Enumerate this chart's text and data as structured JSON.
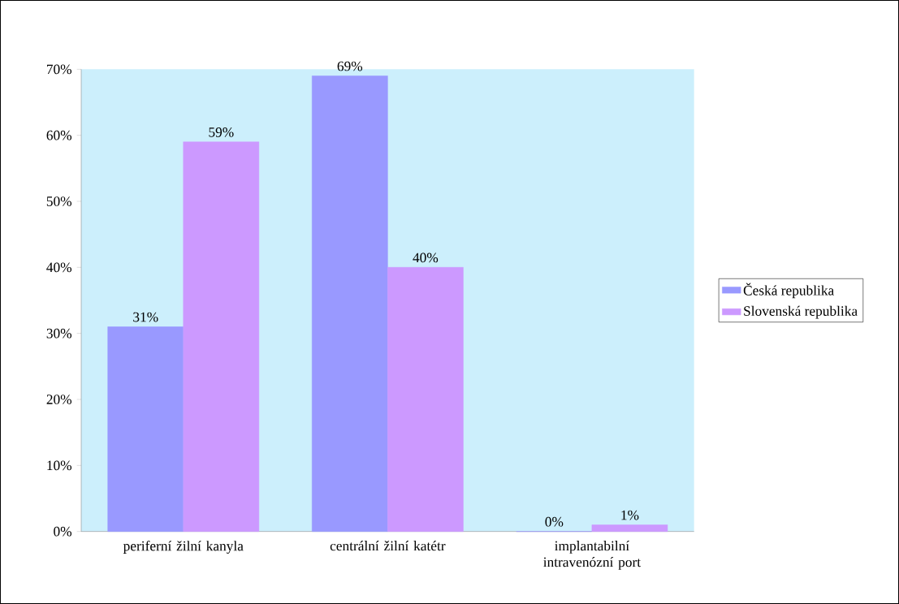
{
  "chart_data": {
    "type": "bar",
    "categories": [
      "periferní žilní kanyla",
      "centrální žilní katétr",
      "implantabilní intravenózní port"
    ],
    "series": [
      {
        "name": "Česká republika",
        "color": "#9999ff",
        "values": [
          31,
          69,
          0
        ],
        "value_labels": [
          "31%",
          "69%",
          "0%"
        ]
      },
      {
        "name": "Slovenská republika",
        "color": "#cc99ff",
        "values": [
          59,
          40,
          1
        ],
        "value_labels": [
          "59%",
          "40%",
          "1%"
        ]
      }
    ],
    "ylim": [
      0,
      70
    ],
    "yticks": [
      {
        "value": 0,
        "label": "0%"
      },
      {
        "value": 10,
        "label": "10%"
      },
      {
        "value": 20,
        "label": "20%"
      },
      {
        "value": 30,
        "label": "30%"
      },
      {
        "value": 40,
        "label": "40%"
      },
      {
        "value": 50,
        "label": "50%"
      },
      {
        "value": 60,
        "label": "60%"
      },
      {
        "value": 70,
        "label": "70%"
      }
    ],
    "legend": "right",
    "grid": false
  }
}
